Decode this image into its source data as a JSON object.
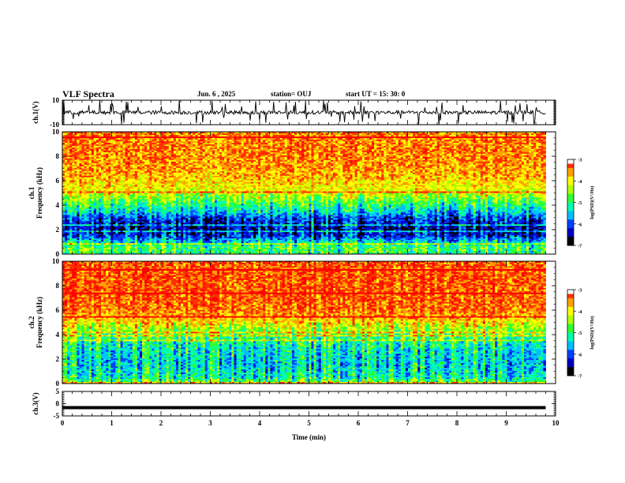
{
  "header": {
    "title": "VLF Spectra",
    "date": "Jun. 6 , 2025",
    "station": "station= OUJ",
    "start": "start UT =  15: 30: 0"
  },
  "chart_data": [
    {
      "type": "line",
      "name": "ch1-waveform",
      "ylabel": "ch.1(V)",
      "ylim": [
        -10,
        10
      ],
      "yticks": [
        "10",
        "-10"
      ],
      "xlim": [
        0,
        10
      ],
      "description_values": {
        "baseline": 0,
        "typical_spike": [
          -6,
          8
        ]
      }
    },
    {
      "type": "heatmap",
      "name": "ch1-spectrogram",
      "ylabel": "ch.1\nFrequency (kHz)",
      "ylim": [
        0,
        10
      ],
      "yticks": [
        "0",
        "2",
        "4",
        "6",
        "8",
        "10"
      ],
      "xlim": [
        0,
        9.8
      ],
      "colorbar": {
        "label": "log(PSD)(V²/Hz)",
        "ticks": [
          "-3",
          "-4",
          "-5",
          "-6",
          "-7"
        ],
        "range": [
          -7,
          -3
        ]
      },
      "profile_freq_kHz": [
        0,
        0.5,
        1,
        1.5,
        2,
        2.5,
        3,
        3.5,
        4,
        4.5,
        5,
        6,
        7,
        8,
        9,
        10
      ],
      "profile_logpsd": [
        -5.0,
        -4.8,
        -5.4,
        -6.2,
        -6.4,
        -6.3,
        -6.0,
        -5.4,
        -5.0,
        -4.6,
        -4.2,
        -3.8,
        -3.6,
        -3.5,
        -3.5,
        -3.5
      ]
    },
    {
      "type": "heatmap",
      "name": "ch2-spectrogram",
      "ylabel": "ch.2\nFrequency (kHz)",
      "ylim": [
        0,
        10
      ],
      "yticks": [
        "0",
        "2",
        "4",
        "6",
        "8",
        "10"
      ],
      "xlim": [
        0,
        9.8
      ],
      "colorbar": {
        "label": "log(PSD)(V²/Hz)",
        "ticks": [
          "-3",
          "-4",
          "-5",
          "-6",
          "-7"
        ],
        "range": [
          -7,
          -3
        ]
      },
      "profile_freq_kHz": [
        0,
        0.5,
        1,
        1.5,
        2,
        2.5,
        3,
        3.5,
        4,
        4.5,
        5,
        6,
        7,
        8,
        9,
        10
      ],
      "profile_logpsd": [
        -4.5,
        -5.2,
        -5.3,
        -5.4,
        -5.4,
        -5.3,
        -5.2,
        -5.0,
        -4.7,
        -4.3,
        -3.9,
        -3.4,
        -3.3,
        -3.3,
        -3.3,
        -3.3
      ]
    },
    {
      "type": "line",
      "name": "ch3-signal",
      "ylabel": "ch.3(V)",
      "ylim": [
        -5,
        5
      ],
      "yticks": [
        "5",
        "0",
        "-5"
      ],
      "xlim": [
        0,
        10
      ],
      "values": [
        {
          "x": 0,
          "y": -1.6
        },
        {
          "x": 9.8,
          "y": -1.6
        }
      ]
    }
  ],
  "xaxis": {
    "label": "Time (min)",
    "ticks": [
      "0",
      "1",
      "2",
      "3",
      "4",
      "5",
      "6",
      "7",
      "8",
      "9",
      "10"
    ],
    "range": [
      0,
      10
    ]
  },
  "colors": {
    "colormap": [
      "#000000",
      "#0000c0",
      "#0040ff",
      "#00c0ff",
      "#00ffb0",
      "#30ff30",
      "#b0ff00",
      "#ffff00",
      "#ffa000",
      "#ff3000",
      "#ff0000",
      "#ffffff"
    ]
  }
}
